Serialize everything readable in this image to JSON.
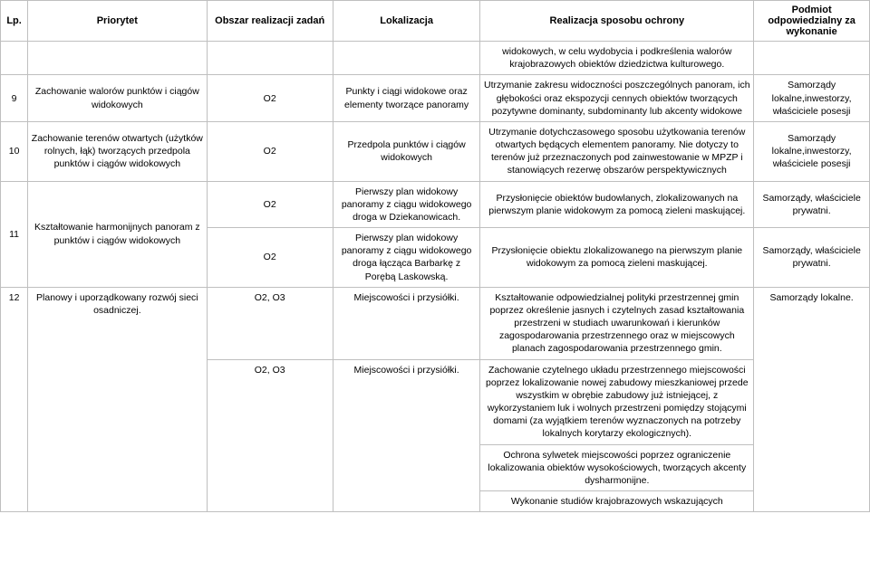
{
  "headers": {
    "lp": "Lp.",
    "priorytet": "Priorytet",
    "obszar": "Obszar realizacji zadań",
    "lokalizacja": "Lokalizacja",
    "realizacja": "Realizacja sposobu ochrony",
    "podmiot": "Podmiot odpowiedzialny za wykonanie"
  },
  "pre_row": {
    "realizacja": "widokowych, w celu wydobycia i podkreślenia walorów krajobrazowych obiektów dziedzictwa kulturowego."
  },
  "row9": {
    "lp": "9",
    "priorytet": "Zachowanie walorów punktów i ciągów widokowych",
    "obszar": "O2",
    "lokalizacja": "Punkty i ciągi widokowe oraz elementy tworzące panoramy",
    "realizacja": "Utrzymanie zakresu widoczności poszczególnych panoram, ich głębokości oraz ekspozycji cennych obiektów tworzących pozytywne dominanty, subdominanty lub akcenty widokowe",
    "podmiot": "Samorządy lokalne,inwestorzy, właściciele posesji"
  },
  "row10": {
    "lp": "10",
    "priorytet": "Zachowanie terenów otwartych (użytków rolnych, łąk) tworzących przedpola punktów i ciągów widokowych",
    "obszar": "O2",
    "lokalizacja": "Przedpola punktów i ciągów widokowych",
    "realizacja": "Utrzymanie dotychczasowego sposobu użytkowania terenów otwartych będących elementem panoramy. Nie dotyczy to terenów już przeznaczonych pod zainwestowanie w MPZP i stanowiących rezerwę obszarów perspektywicznych",
    "podmiot": "Samorządy lokalne,inwestorzy, właściciele posesji"
  },
  "row11a": {
    "lp": "11",
    "priorytet": "Kształtowanie harmonijnych panoram z punktów i ciągów widokowych",
    "obszar": "O2",
    "lokalizacja": "Pierwszy plan widokowy panoramy z ciągu widokowego droga w Dziekanowicach.",
    "realizacja": "Przysłonięcie obiektów budowlanych, zlokalizowanych na pierwszym planie widokowym za pomocą zieleni maskującej.",
    "podmiot": "Samorządy, właściciele prywatni."
  },
  "row11b": {
    "obszar": "O2",
    "lokalizacja": "Pierwszy plan widokowy panoramy z ciągu widokowego droga łącząca Barbarkę z Porębą Laskowską.",
    "realizacja": "Przysłonięcie obiektu zlokalizowanego na pierwszym planie widokowym za pomocą zieleni maskującej.",
    "podmiot": "Samorządy, właściciele prywatni."
  },
  "row12a": {
    "lp": "12",
    "priorytet": "Planowy i uporządkowany rozwój sieci osadniczej.",
    "obszar": "O2, O3",
    "lokalizacja": "Miejscowości i przysiółki.",
    "realizacja": "Kształtowanie odpowiedzialnej polityki przestrzennej gmin poprzez określenie jasnych i czytelnych zasad kształtowania przestrzeni w studiach uwarunkowań i kierunków zagospodarowania przestrzennego oraz w miejscowych planach zagospodarowania przestrzennego gmin.",
    "podmiot": "Samorządy lokalne."
  },
  "row12b": {
    "obszar": "O2, O3",
    "lokalizacja": "Miejscowości i przysiółki.",
    "realizacja": "Zachowanie czytelnego układu przestrzennego miejscowości poprzez lokalizowanie nowej zabudowy mieszkaniowej przede wszystkim w obrębie zabudowy już istniejącej, z wykorzystaniem luk i wolnych przestrzeni pomiędzy stojącymi domami (za wyjątkiem terenów wyznaczonych na potrzeby lokalnych korytarzy ekologicznych)."
  },
  "row12c": {
    "realizacja": "Ochrona sylwetek miejscowości poprzez ograniczenie lokalizowania obiektów wysokościowych, tworzących akcenty dysharmonijne."
  },
  "row12d": {
    "realizacja": "Wykonanie studiów krajobrazowych wskazujących"
  }
}
